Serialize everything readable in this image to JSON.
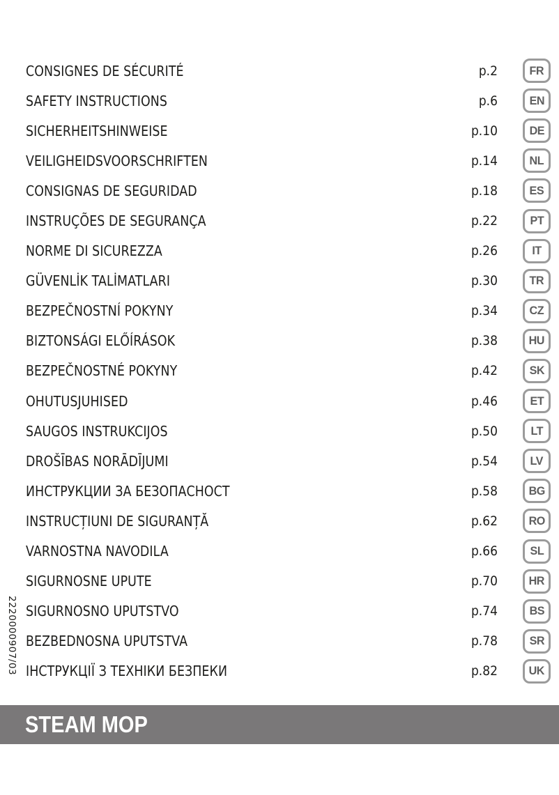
{
  "page": {
    "vertical_code": "2220000907/03"
  },
  "toc": {
    "entries": [
      {
        "title": "CONSIGNES DE SÉCURITÉ",
        "page": "p.2",
        "lang": "FR"
      },
      {
        "title": "SAFETY INSTRUCTIONS",
        "page": "p.6",
        "lang": "EN"
      },
      {
        "title": "SICHERHEITSHINWEISE",
        "page": "p.10",
        "lang": "DE"
      },
      {
        "title": "VEILIGHEIDSVOORSCHRIFTEN",
        "page": "p.14",
        "lang": "NL"
      },
      {
        "title": "CONSIGNAS DE SEGURIDAD",
        "page": "p.18",
        "lang": "ES"
      },
      {
        "title": "INSTRUÇÕES DE SEGURANÇA",
        "page": "p.22",
        "lang": "PT"
      },
      {
        "title": "NORME DI SICUREZZA",
        "page": "p.26",
        "lang": "IT"
      },
      {
        "title": "GÜVENLİK TALİMATLARI",
        "page": "p.30",
        "lang": "TR"
      },
      {
        "title": "BEZPEČNOSTNÍ POKYNY",
        "page": "p.34",
        "lang": "CZ"
      },
      {
        "title": "BIZTONSÁGI ELŐÍRÁSOK",
        "page": "p.38",
        "lang": "HU"
      },
      {
        "title": "BEZPEČNOSTNÉ POKYNY",
        "page": "p.42",
        "lang": "SK"
      },
      {
        "title": "OHUTUSJUHISED",
        "page": "p.46",
        "lang": "ET"
      },
      {
        "title": "SAUGOS INSTRUKCIJOS",
        "page": "p.50",
        "lang": "LT"
      },
      {
        "title": "DROŠĪBAS NORĀDĪJUMI",
        "page": "p.54",
        "lang": "LV"
      },
      {
        "title": "ИНСТРУКЦИИ ЗА БЕЗОПАСНОСТ",
        "page": "p.58",
        "lang": "BG"
      },
      {
        "title": "INSTRUCȚIUNI DE SIGURANȚĂ",
        "page": "p.62",
        "lang": "RO"
      },
      {
        "title": "VARNOSTNA NAVODILA",
        "page": "p.66",
        "lang": "SL"
      },
      {
        "title": "SIGURNOSNE UPUTE",
        "page": "p.70",
        "lang": "HR"
      },
      {
        "title": "SIGURNOSNO UPUTSTVO",
        "page": "p.74",
        "lang": "BS"
      },
      {
        "title": "BEZBEDNOSNA UPUTSTVA",
        "page": "p.78",
        "lang": "SR"
      },
      {
        "title": "ІНСТРУКЦІЇ З ТЕХНІКИ БЕЗПЕКИ",
        "page": "p.82",
        "lang": "UK"
      }
    ]
  },
  "footer": {
    "title": "STEAM MOP"
  },
  "colors": {
    "text": "#1d1d1b",
    "badge_border": "#9b9b9b",
    "badge_text": "#5f5f5f",
    "footer_bar_bg": "#7a7879",
    "footer_bar_fg": "#ffffff"
  }
}
